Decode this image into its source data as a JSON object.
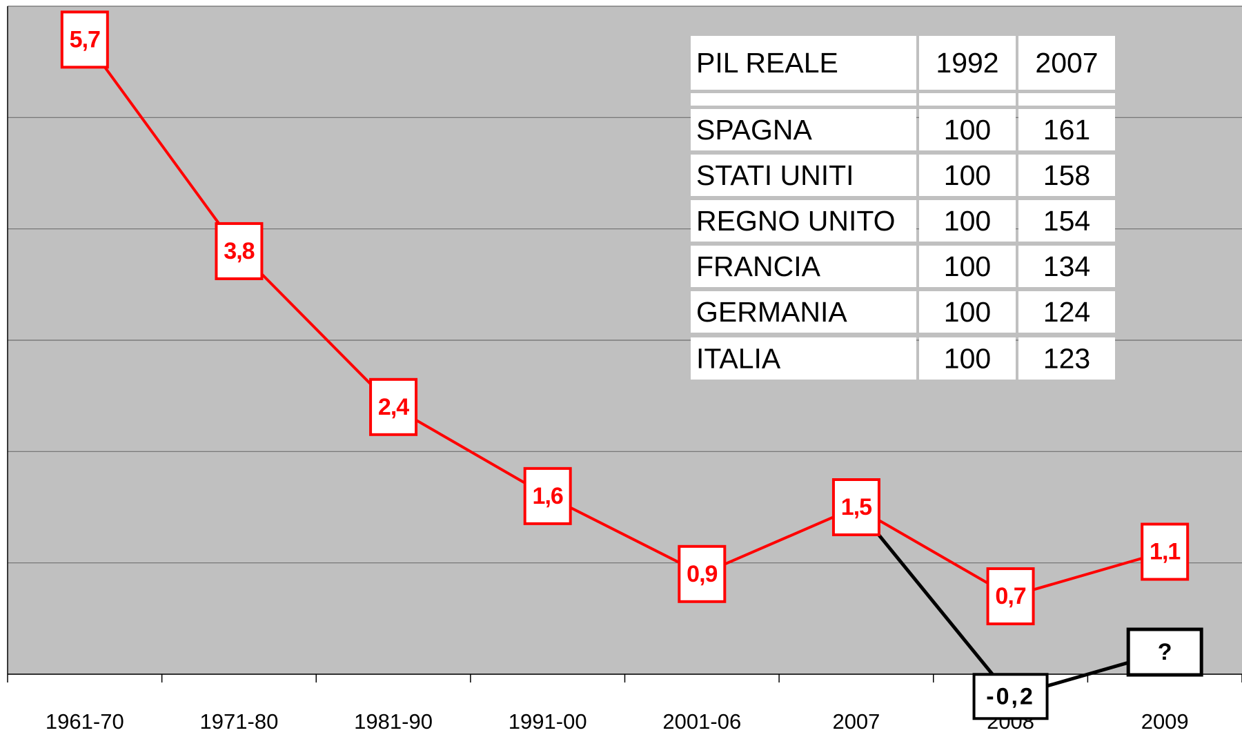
{
  "chart_data": {
    "type": "line",
    "categories": [
      "1961-70",
      "1971-80",
      "1981-90",
      "1991-00",
      "2001-06",
      "2007",
      "2008",
      "2009"
    ],
    "series": [
      {
        "color": "#ff0000",
        "values": [
          5.7,
          3.8,
          2.4,
          1.6,
          0.9,
          1.5,
          0.7,
          1.1
        ],
        "value_labels": [
          "5,7",
          "3,8",
          "2,4",
          "1,6",
          "0,9",
          "1,5",
          "0,7",
          "1,1"
        ]
      },
      {
        "color": "#000000",
        "values": [
          null,
          null,
          null,
          null,
          null,
          1.5,
          -0.2,
          null
        ],
        "value_labels": [
          null,
          null,
          null,
          null,
          null,
          null,
          "-0,2",
          null
        ]
      }
    ],
    "annotation": "?",
    "ylim": [
      0,
      6
    ],
    "yticks": [
      0,
      1,
      2,
      3,
      4,
      5,
      6
    ],
    "grid": true,
    "table": {
      "header": [
        "PIL REALE",
        "1992",
        "2007"
      ],
      "rows": [
        [
          "SPAGNA",
          100,
          161
        ],
        [
          "STATI UNITI",
          100,
          158
        ],
        [
          "REGNO UNITO",
          100,
          154
        ],
        [
          "FRANCIA",
          100,
          134
        ],
        [
          "GERMANIA",
          100,
          124
        ],
        [
          "ITALIA",
          100,
          123
        ]
      ]
    }
  }
}
